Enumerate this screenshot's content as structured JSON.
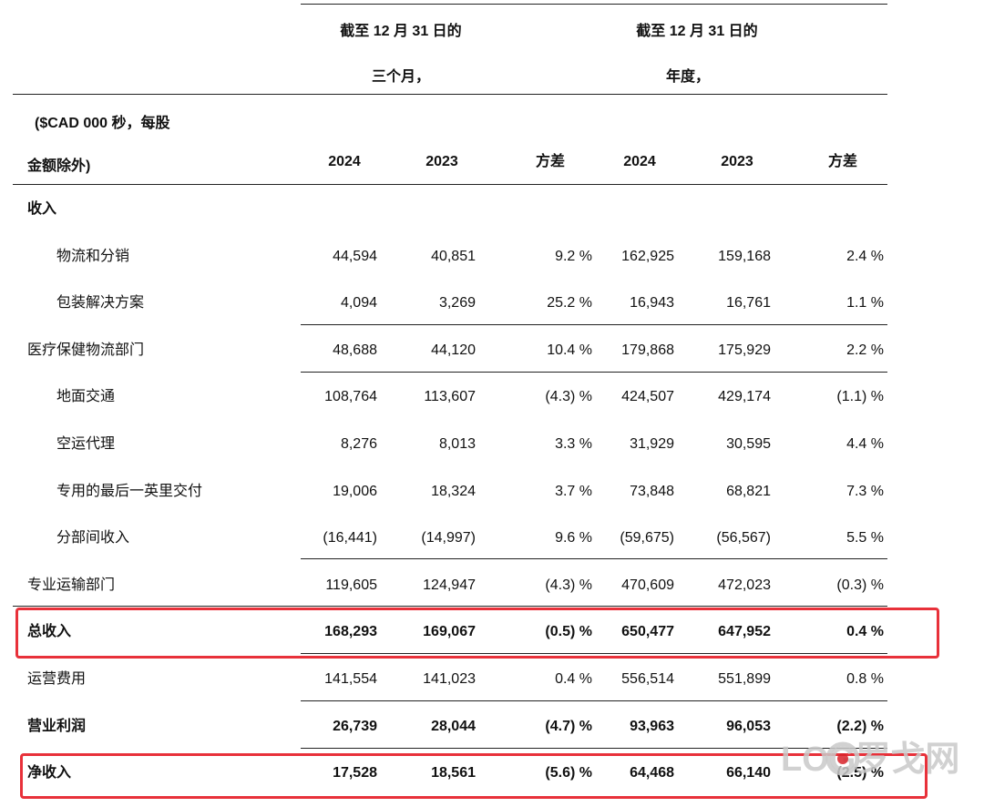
{
  "header": {
    "group1_line1": "截至 12 月 31 日的",
    "group1_line2": "三个月，",
    "group2_line1": "截至 12 月 31 日的",
    "group2_line2": "年度，",
    "unit_line1": "($CAD 000 秒，每股",
    "unit_line2": "金额除外)",
    "col_2024a": "2024",
    "col_2023a": "2023",
    "col_var_a": "方差",
    "col_2024b": "2024",
    "col_2023b": "2023",
    "col_var_b": "方差"
  },
  "rows": [
    {
      "label": "收入",
      "bold": true,
      "indent": false,
      "q2024": "",
      "q2023": "",
      "qvar": "",
      "y2024": "",
      "y2023": "",
      "yvar": ""
    },
    {
      "label": "物流和分销",
      "bold": false,
      "indent": true,
      "q2024": "44,594",
      "q2023": "40,851",
      "qvar": "9.2 %",
      "y2024": "162,925",
      "y2023": "159,168",
      "yvar": "2.4 %"
    },
    {
      "label": "包装解决方案",
      "bold": false,
      "indent": true,
      "q2024": "4,094",
      "q2023": "3,269",
      "qvar": "25.2 %",
      "y2024": "16,943",
      "y2023": "16,761",
      "yvar": "1.1 %"
    },
    {
      "label": "医疗保健物流部门",
      "bold": false,
      "indent": false,
      "q2024": "48,688",
      "q2023": "44,120",
      "qvar": "10.4 %",
      "y2024": "179,868",
      "y2023": "175,929",
      "yvar": "2.2 %"
    },
    {
      "label": "地面交通",
      "bold": false,
      "indent": true,
      "q2024": "108,764",
      "q2023": "113,607",
      "qvar": "(4.3) %",
      "y2024": "424,507",
      "y2023": "429,174",
      "yvar": "(1.1) %"
    },
    {
      "label": "空运代理",
      "bold": false,
      "indent": true,
      "q2024": "8,276",
      "q2023": "8,013",
      "qvar": "3.3 %",
      "y2024": "31,929",
      "y2023": "30,595",
      "yvar": "4.4 %"
    },
    {
      "label": "专用的最后一英里交付",
      "bold": false,
      "indent": true,
      "q2024": "19,006",
      "q2023": "18,324",
      "qvar": "3.7 %",
      "y2024": "73,848",
      "y2023": "68,821",
      "yvar": "7.3 %"
    },
    {
      "label": "分部间收入",
      "bold": false,
      "indent": true,
      "q2024": "(16,441)",
      "q2023": "(14,997)",
      "qvar": "9.6 %",
      "y2024": "(59,675)",
      "y2023": "(56,567)",
      "yvar": "5.5 %"
    },
    {
      "label": "专业运输部门",
      "bold": false,
      "indent": false,
      "q2024": "119,605",
      "q2023": "124,947",
      "qvar": "(4.3) %",
      "y2024": "470,609",
      "y2023": "472,023",
      "yvar": "(0.3) %"
    },
    {
      "label": "总收入",
      "bold": true,
      "indent": false,
      "q2024": "168,293",
      "q2023": "169,067",
      "qvar": "(0.5) %",
      "y2024": "650,477",
      "y2023": "647,952",
      "yvar": "0.4 %"
    },
    {
      "label": "运营费用",
      "bold": false,
      "indent": false,
      "q2024": "141,554",
      "q2023": "141,023",
      "qvar": "0.4 %",
      "y2024": "556,514",
      "y2023": "551,899",
      "yvar": "0.8 %"
    },
    {
      "label": "营业利润",
      "bold": true,
      "indent": false,
      "q2024": "26,739",
      "q2023": "28,044",
      "qvar": "(4.7) %",
      "y2024": "93,963",
      "y2023": "96,053",
      "yvar": "(2.2) %"
    },
    {
      "label": "净收入",
      "bold": true,
      "indent": false,
      "q2024": "17,528",
      "q2023": "18,561",
      "qvar": "(5.6) %",
      "y2024": "64,468",
      "y2023": "66,140",
      "yvar": "(2.5) %"
    }
  ],
  "watermark": {
    "text": "LOG罗戈网"
  },
  "colors": {
    "highlight": "#e8313a",
    "watermark_gray": "#c9c9c9",
    "watermark_red": "#d8232a"
  }
}
